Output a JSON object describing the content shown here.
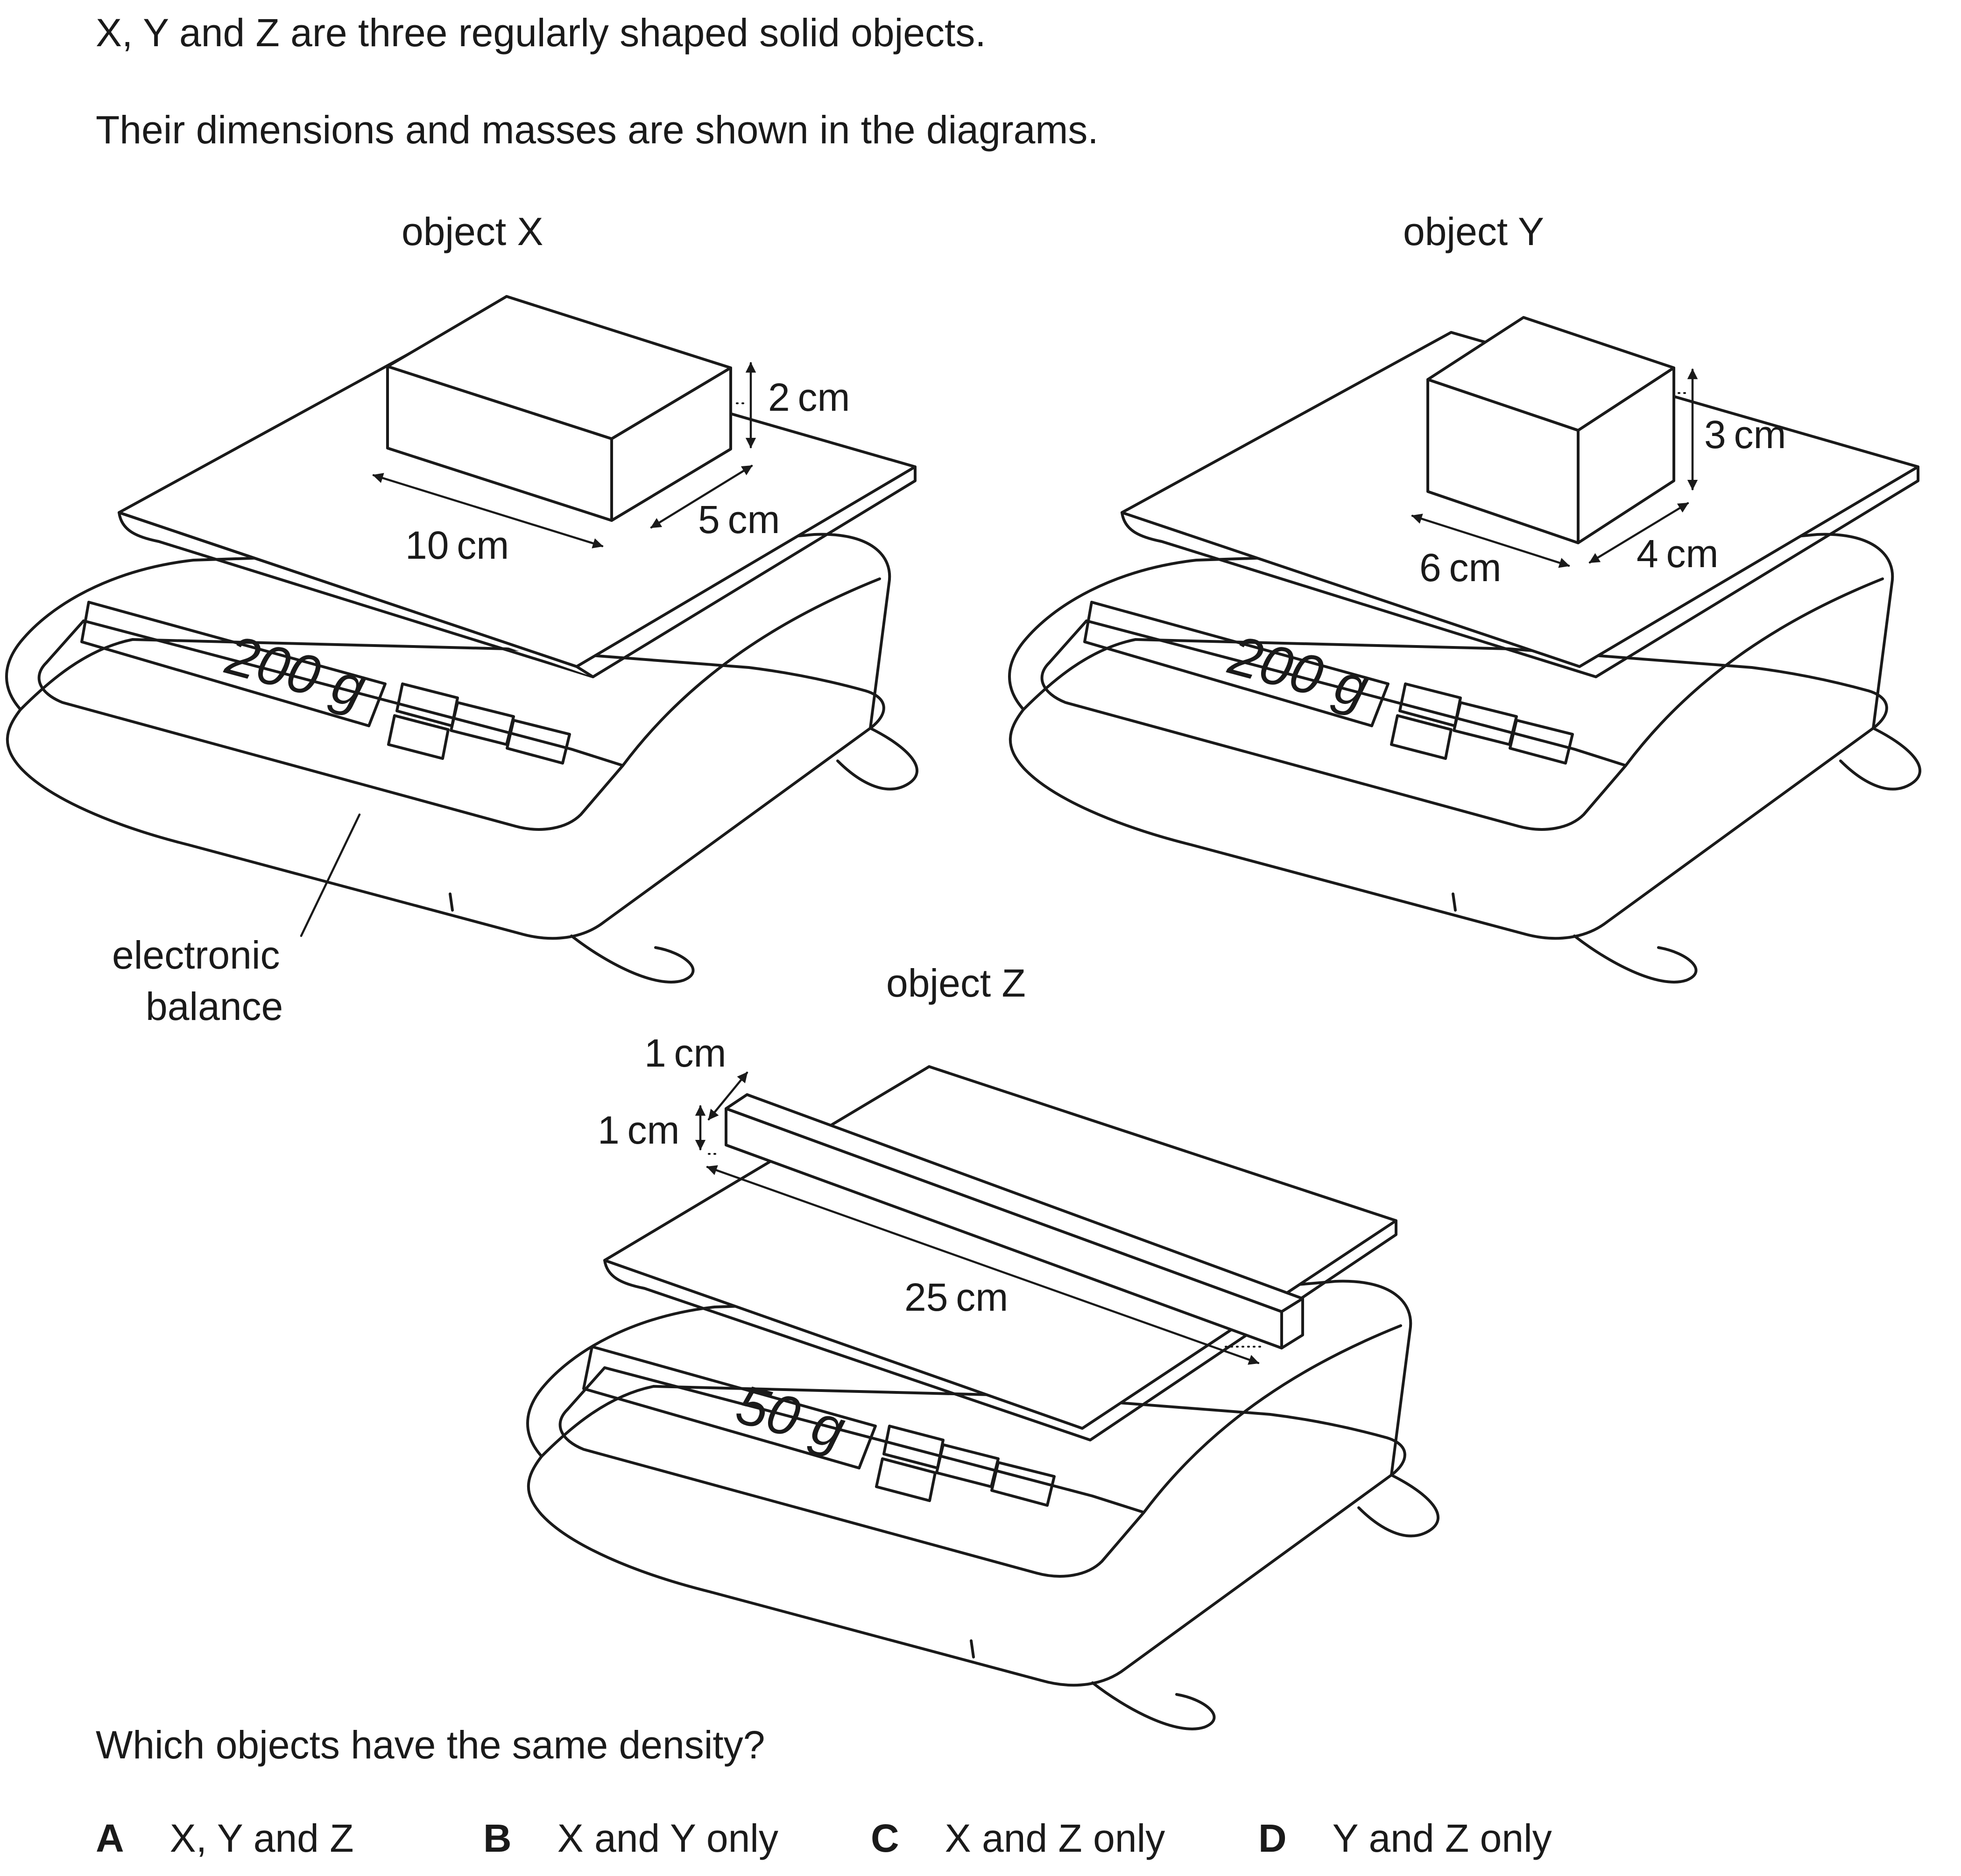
{
  "question": {
    "intro": "X, Y and Z are three regularly shaped solid objects.",
    "detail": "Their dimensions and masses are shown in the diagrams.",
    "prompt": "Which objects have the same density?"
  },
  "diagram": {
    "object_x": {
      "title": "object X",
      "height": "2 cm",
      "length": "10 cm",
      "width": "5 cm",
      "reading": "200 g"
    },
    "object_y": {
      "title": "object Y",
      "height": "3 cm",
      "length": "6 cm",
      "width": "4 cm",
      "reading": "200 g"
    },
    "object_z": {
      "title": "object Z",
      "width": "1 cm",
      "height": "1 cm",
      "length": "25 cm",
      "reading": "50 g"
    },
    "balance_label_line1": "electronic",
    "balance_label_line2": "balance"
  },
  "options": [
    {
      "letter": "A",
      "text": "X, Y and Z"
    },
    {
      "letter": "B",
      "text": "X and Y only"
    },
    {
      "letter": "C",
      "text": "X and Z only"
    },
    {
      "letter": "D",
      "text": "Y and Z only"
    }
  ]
}
